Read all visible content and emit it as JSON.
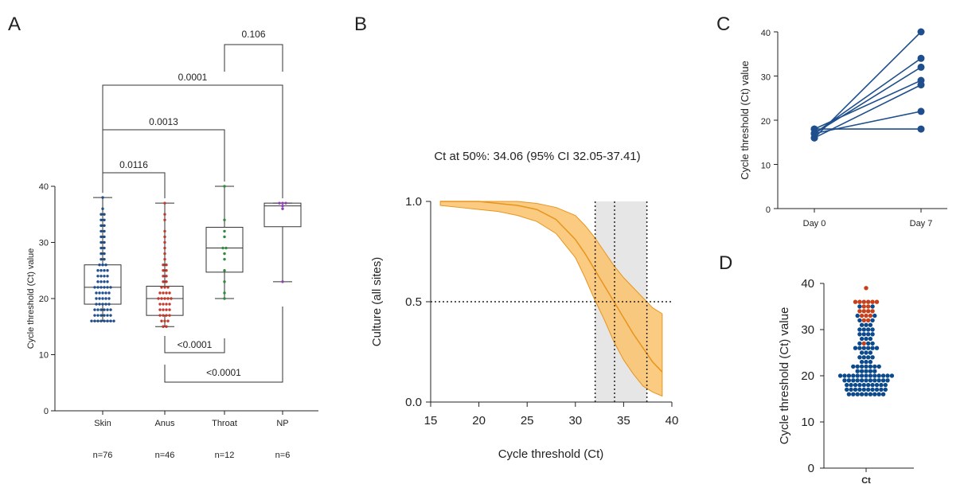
{
  "chart_data": [
    {
      "panel": "A",
      "type": "box",
      "ylabel": "Cycle threshold (Ct) value",
      "ylim": [
        0,
        40
      ],
      "yticks": [
        0,
        10,
        20,
        30,
        40
      ],
      "categories": [
        "Skin",
        "Anus",
        "Throat",
        "NP"
      ],
      "n_labels": [
        "n=76",
        "n=46",
        "n=12",
        "n=6"
      ],
      "colors": [
        "#1f4e8c",
        "#c0392b",
        "#2e8b3a",
        "#8e44ad"
      ],
      "boxes": [
        {
          "min": 16,
          "q1": 19,
          "median": 22,
          "q3": 26,
          "max": 38
        },
        {
          "min": 15,
          "q1": 17,
          "median": 20,
          "q3": 22.2,
          "max": 37
        },
        {
          "min": 20,
          "q1": 24.7,
          "median": 29,
          "q3": 32.7,
          "max": 40
        },
        {
          "min": 23,
          "q1": 32.8,
          "median": 36.5,
          "q3": 37,
          "max": 37
        }
      ],
      "points": [
        [
          16,
          16,
          16,
          16,
          16,
          16,
          16,
          16,
          17,
          17,
          17,
          17,
          17,
          17,
          18,
          18,
          18,
          18,
          18,
          18,
          19,
          19,
          19,
          19,
          19,
          20,
          20,
          20,
          20,
          20,
          21,
          21,
          21,
          21,
          21,
          22,
          22,
          22,
          22,
          22,
          22,
          23,
          23,
          23,
          23,
          24,
          24,
          24,
          24,
          25,
          25,
          25,
          25,
          26,
          26,
          26,
          27,
          27,
          28,
          28,
          29,
          29,
          30,
          30,
          31,
          31,
          32,
          32,
          33,
          33,
          34,
          34,
          35,
          35,
          36,
          38
        ],
        [
          15,
          15,
          16,
          16,
          16,
          17,
          17,
          17,
          17,
          18,
          18,
          18,
          18,
          19,
          19,
          19,
          19,
          20,
          20,
          20,
          20,
          20,
          21,
          21,
          21,
          21,
          22,
          22,
          22,
          23,
          23,
          24,
          24,
          25,
          25,
          26,
          26,
          27,
          28,
          29,
          30,
          31,
          32,
          34,
          35,
          37
        ],
        [
          20,
          21,
          23,
          25,
          27,
          28,
          29,
          29,
          31,
          32,
          34,
          40
        ],
        [
          23,
          36,
          36.5,
          37,
          37,
          37
        ]
      ],
      "comparisons": [
        {
          "from": "Skin",
          "to": "Anus",
          "p": "0.0116"
        },
        {
          "from": "Skin",
          "to": "Throat",
          "p": "0.0013"
        },
        {
          "from": "Skin",
          "to": "NP",
          "p": "0.0001"
        },
        {
          "from": "Throat",
          "to": "NP",
          "p": "0.106"
        },
        {
          "from": "Anus",
          "to": "Throat",
          "p": "<0.0001"
        },
        {
          "from": "Anus",
          "to": "NP",
          "p": "<0.0001"
        }
      ]
    },
    {
      "panel": "B",
      "type": "line",
      "title": "Ct at 50%: 34.06 (95% CI 32.05-37.41)",
      "xlabel": "Cycle threshold (Ct)",
      "ylabel": "Culture (all sites)",
      "xlim": [
        15,
        40
      ],
      "ylim": [
        0,
        1
      ],
      "xticks": [
        15,
        20,
        25,
        30,
        35,
        40
      ],
      "yticks": [
        "0.0",
        "0.5",
        "1.0"
      ],
      "curve": {
        "x": [
          16,
          18,
          20,
          22,
          24,
          26,
          28,
          30,
          31,
          32,
          33,
          34,
          35,
          36,
          37,
          38,
          39
        ],
        "y": [
          1.0,
          1.0,
          1.0,
          0.99,
          0.98,
          0.96,
          0.91,
          0.81,
          0.74,
          0.66,
          0.58,
          0.5,
          0.42,
          0.34,
          0.27,
          0.2,
          0.15
        ]
      },
      "ci_upper": {
        "x": [
          16,
          18,
          20,
          22,
          24,
          26,
          28,
          30,
          31,
          32,
          33,
          34,
          35,
          36,
          37,
          38,
          39
        ],
        "y": [
          1.0,
          1.0,
          1.0,
          1.0,
          1.0,
          0.99,
          0.97,
          0.93,
          0.88,
          0.82,
          0.75,
          0.68,
          0.62,
          0.57,
          0.52,
          0.47,
          0.44
        ]
      },
      "ci_lower": {
        "x": [
          16,
          18,
          20,
          22,
          24,
          26,
          28,
          30,
          31,
          32,
          33,
          34,
          35,
          36,
          37,
          38,
          39
        ],
        "y": [
          0.98,
          0.97,
          0.96,
          0.95,
          0.93,
          0.9,
          0.84,
          0.72,
          0.62,
          0.51,
          0.41,
          0.3,
          0.21,
          0.14,
          0.08,
          0.05,
          0.03
        ]
      },
      "ct50": 34.06,
      "ci": [
        32.05,
        37.41
      ],
      "colors": {
        "band": "#f9c26b",
        "line": "#e8951e",
        "shade": "#e6e6e6"
      }
    },
    {
      "panel": "C",
      "type": "line",
      "ylabel": "Cycle threshold (Ct) value",
      "categories": [
        "Day 0",
        "Day 7"
      ],
      "ylim": [
        0,
        40
      ],
      "yticks": [
        0,
        10,
        20,
        30,
        40
      ],
      "series": [
        {
          "values": [
            16,
            40
          ]
        },
        {
          "values": [
            17,
            34
          ]
        },
        {
          "values": [
            17,
            32
          ]
        },
        {
          "values": [
            18,
            29
          ]
        },
        {
          "values": [
            16,
            28
          ]
        },
        {
          "values": [
            17,
            22
          ]
        },
        {
          "values": [
            18,
            18
          ]
        }
      ],
      "color": "#1f4e8c"
    },
    {
      "panel": "D",
      "type": "scatter",
      "ylabel": "Cycle threshold (Ct) value",
      "xlabel": "Ct",
      "ylim": [
        0,
        40
      ],
      "yticks": [
        0,
        10,
        20,
        30,
        40
      ],
      "colors": {
        "culture_negative": "#0d4a8c",
        "culture_positive": "#c8401a"
      },
      "bins": [
        {
          "y": 16,
          "neg": 9,
          "pos": 0
        },
        {
          "y": 17,
          "neg": 10,
          "pos": 0
        },
        {
          "y": 18,
          "neg": 10,
          "pos": 0
        },
        {
          "y": 19,
          "neg": 11,
          "pos": 0
        },
        {
          "y": 20,
          "neg": 13,
          "pos": 0
        },
        {
          "y": 21,
          "neg": 5,
          "pos": 0
        },
        {
          "y": 22,
          "neg": 7,
          "pos": 0
        },
        {
          "y": 23,
          "neg": 3,
          "pos": 0
        },
        {
          "y": 24,
          "neg": 4,
          "pos": 0
        },
        {
          "y": 25,
          "neg": 3,
          "pos": 0
        },
        {
          "y": 26,
          "neg": 6,
          "pos": 0
        },
        {
          "y": 27,
          "neg": 3,
          "pos": 1
        },
        {
          "y": 28,
          "neg": 3,
          "pos": 0
        },
        {
          "y": 29,
          "neg": 4,
          "pos": 0
        },
        {
          "y": 30,
          "neg": 4,
          "pos": 0
        },
        {
          "y": 31,
          "neg": 3,
          "pos": 0
        },
        {
          "y": 32,
          "neg": 2,
          "pos": 2
        },
        {
          "y": 33,
          "neg": 2,
          "pos": 3
        },
        {
          "y": 34,
          "neg": 0,
          "pos": 4
        },
        {
          "y": 35,
          "neg": 2,
          "pos": 2
        },
        {
          "y": 36,
          "neg": 0,
          "pos": 6
        },
        {
          "y": 39,
          "neg": 0,
          "pos": 1
        }
      ]
    }
  ],
  "panel_letters": [
    "A",
    "B",
    "C",
    "D"
  ]
}
